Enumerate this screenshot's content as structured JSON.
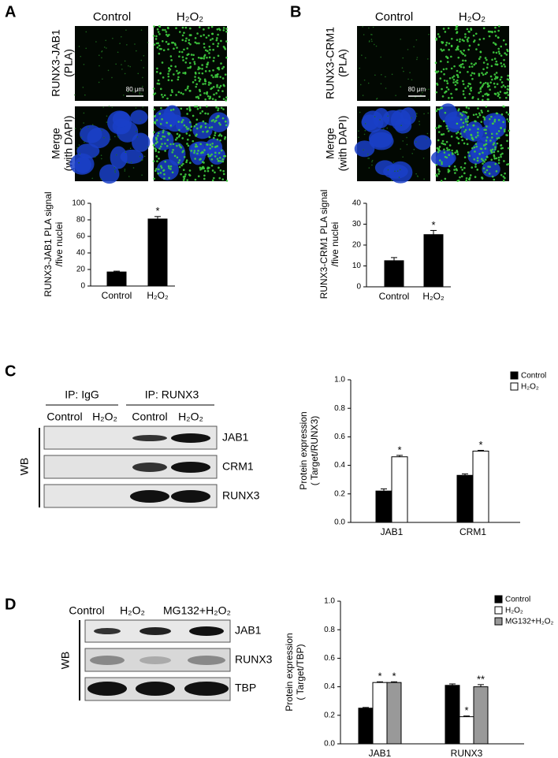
{
  "panels": [
    {
      "label": "A",
      "columns": [
        "Control",
        "H₂O₂"
      ],
      "rows": [
        [
          "RUNX3-JAB1",
          "(PLA)"
        ],
        [
          "Merge",
          "(with DAPI)"
        ]
      ],
      "scale_bar": "80 μm"
    },
    {
      "label": "B",
      "columns": [
        "Control",
        "H₂O₂"
      ],
      "rows": [
        [
          "RUNX3-CRM1",
          "(PLA)"
        ],
        [
          "Merge",
          "(with DAPI)"
        ]
      ],
      "scale_bar": "80 μm"
    },
    {
      "label": "C",
      "ip_groups": [
        "IP: IgG",
        "IP: RUNX3"
      ],
      "columns": [
        "Control",
        "H₂O₂",
        "Control",
        "H₂O₂"
      ],
      "blot_rows": [
        "JAB1",
        "CRM1",
        "RUNX3"
      ],
      "method": "WB"
    },
    {
      "label": "D",
      "columns": [
        "Control",
        "H₂O₂",
        "MG132+H₂O₂"
      ],
      "blot_rows": [
        "JAB1",
        "RUNX3",
        "TBP"
      ],
      "method": "WB"
    }
  ],
  "chart_data": [
    {
      "type": "bar",
      "ylabel": [
        "RUNX3-JAB1 PLA signal",
        "/five nuclei"
      ],
      "categories": [
        "Control",
        "H₂O₂"
      ],
      "values": [
        17,
        81
      ],
      "errors": [
        1,
        3
      ],
      "annotations": [
        null,
        "*"
      ],
      "color": "#000000",
      "ylim": [
        0,
        100
      ],
      "yticks": [
        0,
        20,
        40,
        60,
        80,
        100
      ]
    },
    {
      "type": "bar",
      "ylabel": [
        "RUNX3-CRM1 PLA signal",
        "/five nuclei"
      ],
      "categories": [
        "Control",
        "H₂O₂"
      ],
      "values": [
        12.5,
        25
      ],
      "errors": [
        1.5,
        2
      ],
      "annotations": [
        null,
        "*"
      ],
      "color": "#000000",
      "ylim": [
        0,
        40
      ],
      "yticks": [
        0,
        10,
        20,
        30,
        40
      ]
    },
    {
      "type": "bar",
      "ylabel": [
        "Protein expression",
        "( Target/RUNX3)"
      ],
      "categories": [
        "JAB1",
        "CRM1"
      ],
      "series": [
        {
          "name": "Control",
          "color": "#000000",
          "values": [
            0.22,
            0.33
          ],
          "errors": [
            0.015,
            0.01
          ],
          "annotations": [
            null,
            null
          ]
        },
        {
          "name": "H₂O₂",
          "color": "#ffffff",
          "values": [
            0.46,
            0.5
          ],
          "errors": [
            0.01,
            0.005
          ],
          "annotations": [
            "*",
            "*"
          ]
        }
      ],
      "legend": "top-right",
      "ylim": [
        0,
        1
      ],
      "yticks": [
        {
          "value": 0,
          "label": "0.0"
        },
        {
          "value": 0.2,
          "label": "0.2"
        },
        {
          "value": 0.4,
          "label": "0.4"
        },
        {
          "value": 0.6,
          "label": "0.6"
        },
        {
          "value": 0.8,
          "label": "0.8"
        },
        {
          "value": 1,
          "label": "1.0"
        }
      ]
    },
    {
      "type": "bar",
      "ylabel": [
        "Protein expression",
        "( Target/TBP)"
      ],
      "categories": [
        "JAB1",
        "RUNX3"
      ],
      "series": [
        {
          "name": "Control",
          "color": "#000000",
          "values": [
            0.25,
            0.41
          ],
          "errors": [
            0.005,
            0.01
          ],
          "annotations": [
            null,
            null
          ]
        },
        {
          "name": "H₂O₂",
          "color": "#ffffff",
          "values": [
            0.43,
            0.19
          ],
          "errors": [
            0.005,
            0.005
          ],
          "annotations": [
            "*",
            "*"
          ]
        },
        {
          "name": "MG132+H₂O₂",
          "color": "#999999",
          "values": [
            0.43,
            0.4
          ],
          "errors": [
            0.005,
            0.015
          ],
          "annotations": [
            "*",
            "**"
          ]
        }
      ],
      "legend": "top-right",
      "ylim": [
        0,
        1
      ],
      "yticks": [
        {
          "value": 0,
          "label": "0.0"
        },
        {
          "value": 0.2,
          "label": "0.2"
        },
        {
          "value": 0.4,
          "label": "0.4"
        },
        {
          "value": 0.6,
          "label": "0.6"
        },
        {
          "value": 0.8,
          "label": "0.8"
        },
        {
          "value": 1,
          "label": "1.0"
        }
      ]
    }
  ]
}
